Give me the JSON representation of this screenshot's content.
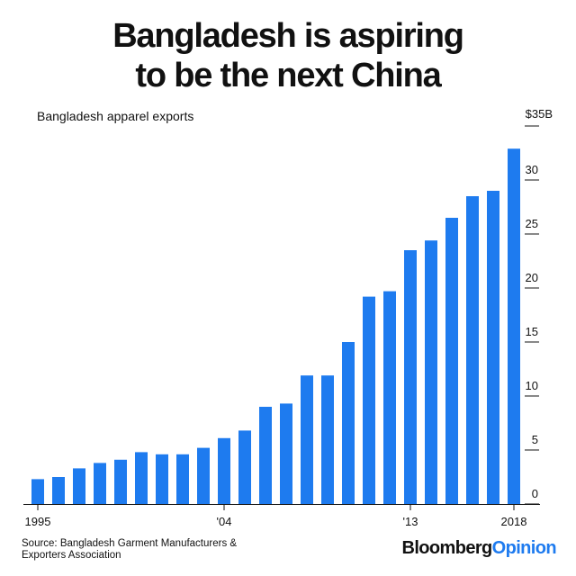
{
  "headline": {
    "line1": "Bangladesh is aspiring",
    "line2": "to be the next China"
  },
  "subtitle": "Bangladesh apparel exports",
  "source": {
    "line1": "Source: Bangladesh Garment Manufacturers &",
    "line2": "Exporters Association"
  },
  "brand": {
    "part1": "Bloomberg",
    "part2": "Opinion"
  },
  "colors": {
    "bar": "#1e7bef",
    "text": "#111111",
    "brand_accent": "#1e7bef"
  },
  "chart_data": {
    "type": "bar",
    "title": "Bangladesh apparel exports",
    "xlabel": "",
    "ylabel": "",
    "categories": [
      1995,
      1996,
      1997,
      1998,
      1999,
      2000,
      2001,
      2002,
      2003,
      2004,
      2005,
      2006,
      2007,
      2008,
      2009,
      2010,
      2011,
      2012,
      2013,
      2014,
      2015,
      2016,
      2017,
      2018
    ],
    "values": [
      2.3,
      2.5,
      3.3,
      3.8,
      4.1,
      4.8,
      4.6,
      4.6,
      5.2,
      6.1,
      6.8,
      9.0,
      9.3,
      11.9,
      11.9,
      15.0,
      19.2,
      19.7,
      23.5,
      24.4,
      26.5,
      28.5,
      29.0,
      32.9
    ],
    "x_tick_labels": [
      {
        "category": 1995,
        "label": "1995"
      },
      {
        "category": 2004,
        "label": "'04"
      },
      {
        "category": 2013,
        "label": "'13"
      },
      {
        "category": 2018,
        "label": "2018"
      }
    ],
    "y_ticks": [
      {
        "value": 0,
        "label": "0"
      },
      {
        "value": 5,
        "label": "5"
      },
      {
        "value": 10,
        "label": "10"
      },
      {
        "value": 15,
        "label": "15"
      },
      {
        "value": 20,
        "label": "20"
      },
      {
        "value": 25,
        "label": "25"
      },
      {
        "value": 30,
        "label": "30"
      },
      {
        "value": 35,
        "label": "$35B"
      }
    ],
    "ylim": [
      0,
      35
    ],
    "y_axis_position": "right",
    "grid": false
  }
}
